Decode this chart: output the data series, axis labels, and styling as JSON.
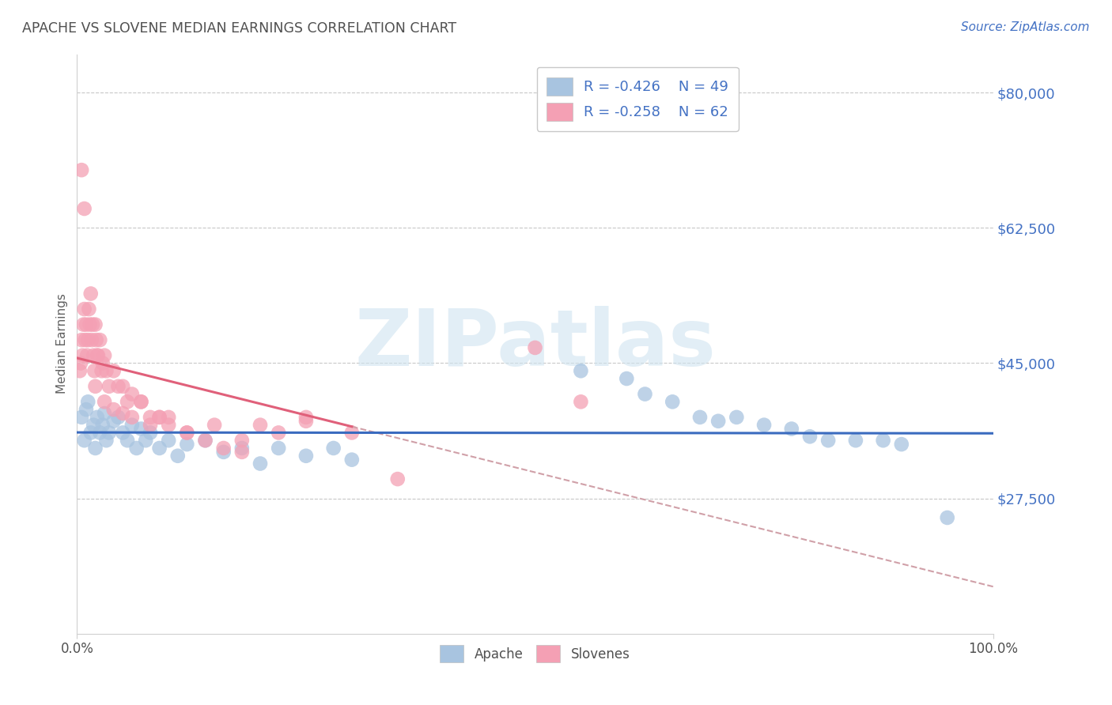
{
  "title": "APACHE VS SLOVENE MEDIAN EARNINGS CORRELATION CHART",
  "source": "Source: ZipAtlas.com",
  "ylabel": "Median Earnings",
  "watermark": "ZIPatlas",
  "xlim": [
    0.0,
    100.0
  ],
  "ylim": [
    10000,
    85000
  ],
  "yticks": [
    27500,
    45000,
    62500,
    80000
  ],
  "ytick_labels": [
    "$27,500",
    "$45,000",
    "$62,500",
    "$80,000"
  ],
  "xticks": [
    0.0,
    100.0
  ],
  "xtick_labels": [
    "0.0%",
    "100.0%"
  ],
  "legend_r_apache": "R = -0.426",
  "legend_n_apache": "N = 49",
  "legend_r_slovene": "R = -0.258",
  "legend_n_slovene": "N = 62",
  "apache_color": "#a8c4e0",
  "slovene_color": "#f4a0b4",
  "apache_line_color": "#3a6bbf",
  "slovene_line_color": "#e0607a",
  "dashed_line_color": "#d0a0a8",
  "title_color": "#505050",
  "source_color": "#4472c4",
  "ytick_color": "#4472c4",
  "grid_color": "#c8c8c8",
  "background_color": "#ffffff",
  "apache_scatter_x": [
    0.5,
    0.8,
    1.0,
    1.2,
    1.5,
    1.8,
    2.0,
    2.2,
    2.5,
    2.8,
    3.0,
    3.2,
    3.5,
    4.0,
    4.5,
    5.0,
    5.5,
    6.0,
    6.5,
    7.0,
    7.5,
    8.0,
    9.0,
    10.0,
    11.0,
    12.0,
    14.0,
    16.0,
    18.0,
    20.0,
    22.0,
    25.0,
    28.0,
    30.0,
    55.0,
    60.0,
    62.0,
    65.0,
    68.0,
    70.0,
    72.0,
    75.0,
    78.0,
    80.0,
    82.0,
    85.0,
    88.0,
    90.0,
    95.0
  ],
  "apache_scatter_y": [
    38000,
    35000,
    39000,
    40000,
    36000,
    37000,
    34000,
    38000,
    36000,
    37000,
    38500,
    35000,
    36000,
    37500,
    38000,
    36000,
    35000,
    37000,
    34000,
    36500,
    35000,
    36000,
    34000,
    35000,
    33000,
    34500,
    35000,
    33500,
    34000,
    32000,
    34000,
    33000,
    34000,
    32500,
    44000,
    43000,
    41000,
    40000,
    38000,
    37500,
    38000,
    37000,
    36500,
    35500,
    35000,
    35000,
    35000,
    34500,
    25000
  ],
  "slovene_scatter_x": [
    0.3,
    0.4,
    0.5,
    0.6,
    0.7,
    0.8,
    0.9,
    1.0,
    1.1,
    1.2,
    1.3,
    1.4,
    1.5,
    1.6,
    1.7,
    1.8,
    1.9,
    2.0,
    2.1,
    2.2,
    2.3,
    2.5,
    2.7,
    2.8,
    3.0,
    3.2,
    3.5,
    4.0,
    4.5,
    5.0,
    5.5,
    6.0,
    7.0,
    8.0,
    9.0,
    10.0,
    12.0,
    15.0,
    18.0,
    20.0,
    22.0,
    25.0,
    2.0,
    3.0,
    4.0,
    5.0,
    6.0,
    7.0,
    8.0,
    9.0,
    10.0,
    12.0,
    14.0,
    16.0,
    18.0,
    0.5,
    0.8,
    25.0,
    50.0,
    55.0,
    30.0,
    35.0
  ],
  "slovene_scatter_y": [
    44000,
    45000,
    48000,
    46000,
    50000,
    52000,
    48000,
    50000,
    46000,
    48000,
    52000,
    50000,
    54000,
    48000,
    50000,
    46000,
    44000,
    50000,
    48000,
    46000,
    46000,
    48000,
    44000,
    45000,
    46000,
    44000,
    42000,
    44000,
    42000,
    42000,
    40000,
    41000,
    40000,
    38000,
    38000,
    38000,
    36000,
    37000,
    35000,
    37000,
    36000,
    37500,
    42000,
    40000,
    39000,
    38500,
    38000,
    40000,
    37000,
    38000,
    37000,
    36000,
    35000,
    34000,
    33500,
    70000,
    65000,
    38000,
    47000,
    40000,
    36000,
    30000
  ]
}
